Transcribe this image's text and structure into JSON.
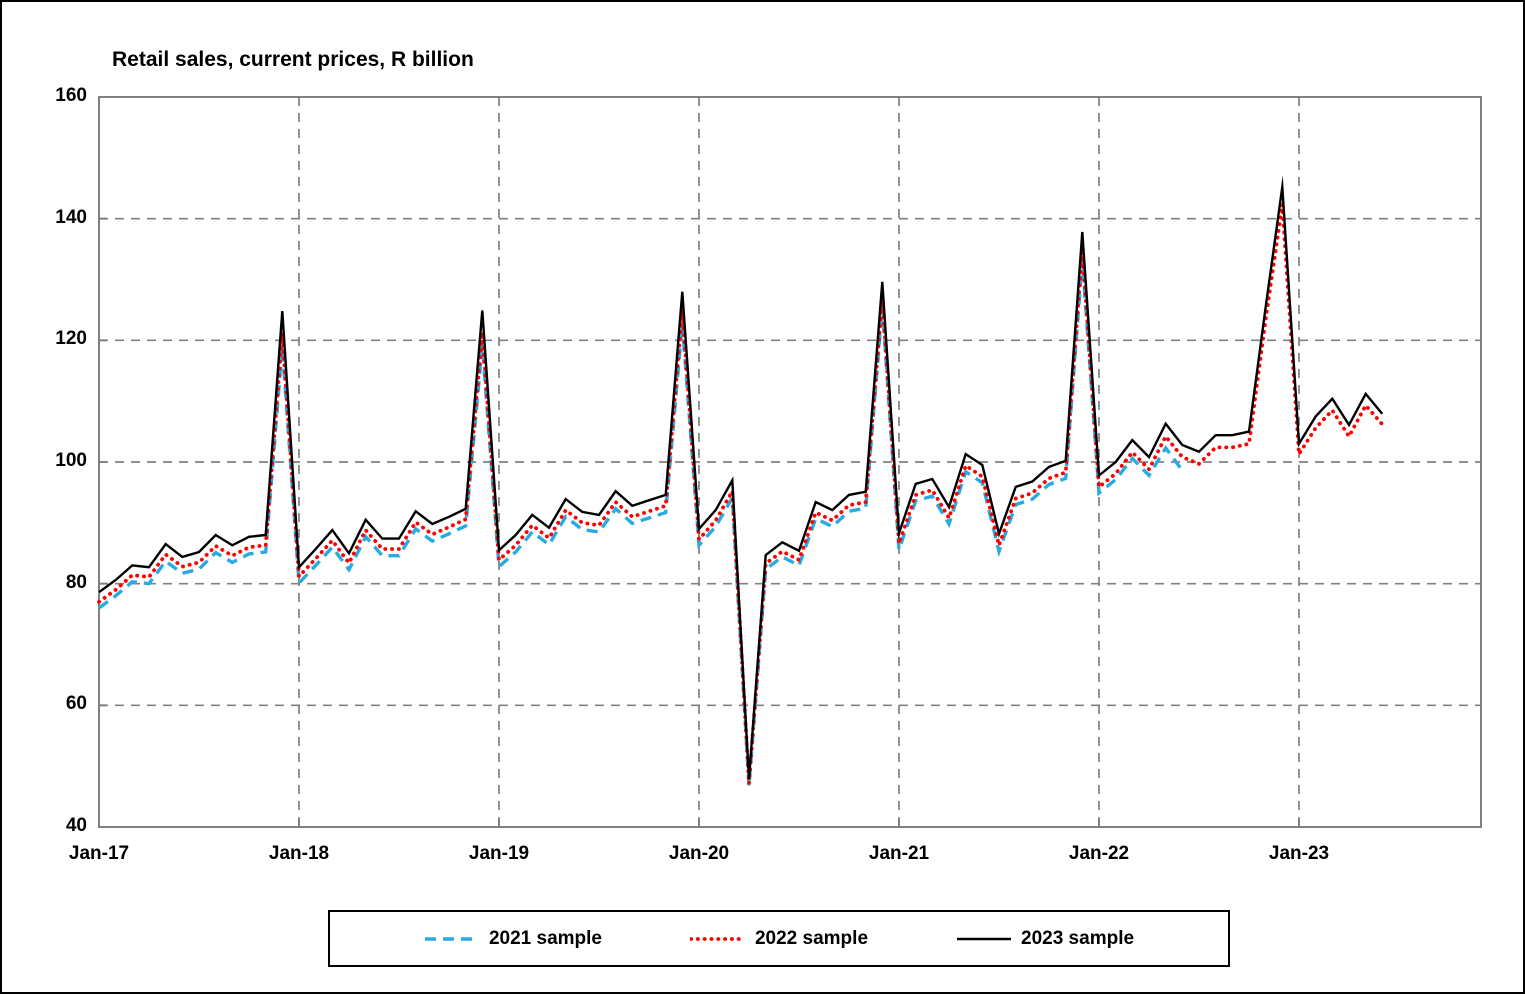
{
  "title": "Retail sales, current prices, R billion",
  "axes": {
    "y_tick_labels": [
      "40",
      "60",
      "80",
      "100",
      "120",
      "140",
      "160"
    ],
    "x_tick_labels": [
      "Jan-17",
      "Jan-18",
      "Jan-19",
      "Jan-20",
      "Jan-21",
      "Jan-22",
      "Jan-23"
    ]
  },
  "colors": {
    "series_2021": "#29ABE2",
    "series_2022": "#FF0000",
    "series_2023": "#000000",
    "gridline": "#808080",
    "frame": "#808080",
    "text": "#000000"
  },
  "legend": {
    "items": [
      {
        "label": "2021 sample",
        "style": "dashed",
        "color": "#29ABE2"
      },
      {
        "label": "2022 sample",
        "style": "dotted",
        "color": "#FF0000"
      },
      {
        "label": "2023 sample",
        "style": "solid",
        "color": "#000000"
      }
    ]
  },
  "chart_data": {
    "type": "line",
    "title": "Retail sales, current prices, R billion",
    "xlabel": "",
    "ylabel": "",
    "ylim": [
      40,
      160
    ],
    "y_ticks": [
      40,
      60,
      80,
      100,
      120,
      140,
      160
    ],
    "x_year_ticks": [
      "Jan-17",
      "Jan-18",
      "Jan-19",
      "Jan-20",
      "Jan-21",
      "Jan-22",
      "Jan-23"
    ],
    "grid": "dashed gray, horizontal at 20-unit steps and vertical at each January",
    "legend_position": "bottom",
    "months": [
      "Jan-17",
      "Feb-17",
      "Mar-17",
      "Apr-17",
      "May-17",
      "Jun-17",
      "Jul-17",
      "Aug-17",
      "Sep-17",
      "Oct-17",
      "Nov-17",
      "Dec-17",
      "Jan-18",
      "Feb-18",
      "Mar-18",
      "Apr-18",
      "May-18",
      "Jun-18",
      "Jul-18",
      "Aug-18",
      "Sep-18",
      "Oct-18",
      "Nov-18",
      "Dec-18",
      "Jan-19",
      "Feb-19",
      "Mar-19",
      "Apr-19",
      "May-19",
      "Jun-19",
      "Jul-19",
      "Aug-19",
      "Sep-19",
      "Oct-19",
      "Nov-19",
      "Dec-19",
      "Jan-20",
      "Feb-20",
      "Mar-20",
      "Apr-20",
      "May-20",
      "Jun-20",
      "Jul-20",
      "Aug-20",
      "Sep-20",
      "Oct-20",
      "Nov-20",
      "Dec-20",
      "Jan-21",
      "Feb-21",
      "Mar-21",
      "Apr-21",
      "May-21",
      "Jun-21",
      "Jul-21",
      "Aug-21",
      "Sep-21",
      "Oct-21",
      "Nov-21",
      "Dec-21",
      "Jan-22",
      "Feb-22",
      "Mar-22",
      "Apr-22",
      "May-22",
      "Jun-22",
      "Jul-22",
      "Aug-22",
      "Sep-22",
      "Oct-22",
      "Nov-22",
      "Dec-22",
      "Jan-23",
      "Feb-23",
      "Mar-23",
      "Apr-23",
      "May-23",
      "Jun-23"
    ],
    "series": [
      {
        "name": "2021 sample",
        "color": "#29ABE2",
        "style": "dashed",
        "values": [
          76.0,
          78.0,
          80.3,
          80.0,
          83.7,
          81.7,
          82.4,
          85.1,
          83.5,
          84.9,
          85.2,
          119.0,
          80.1,
          83.0,
          86.0,
          82.3,
          87.7,
          84.6,
          84.6,
          89.0,
          87.0,
          88.2,
          89.5,
          119.2,
          82.8,
          85.2,
          88.5,
          86.4,
          91.0,
          88.9,
          88.5,
          92.3,
          89.9,
          90.8,
          91.7,
          122.8,
          86.3,
          89.4,
          94.1,
          46.7,
          82.4,
          84.4,
          83.0,
          90.7,
          89.4,
          91.9,
          92.4,
          125.5,
          85.6,
          93.6,
          94.4,
          89.8,
          98.4,
          96.6,
          85.3,
          93.0,
          93.9,
          96.3,
          97.3,
          133.2,
          94.9,
          97.1,
          100.6,
          97.8,
          102.3,
          98.6
        ]
      },
      {
        "name": "2022 sample",
        "color": "#FF0000",
        "style": "dotted",
        "values": [
          77.0,
          79.0,
          81.4,
          81.1,
          84.8,
          82.8,
          83.5,
          86.2,
          84.6,
          86.0,
          86.3,
          121.2,
          81.2,
          84.1,
          87.1,
          83.4,
          88.8,
          85.7,
          85.7,
          90.1,
          88.1,
          89.3,
          90.6,
          121.3,
          83.9,
          86.3,
          89.6,
          87.5,
          92.1,
          90.0,
          89.6,
          93.4,
          91.0,
          91.9,
          92.8,
          125.0,
          87.3,
          90.4,
          95.2,
          47.1,
          83.3,
          85.3,
          83.9,
          91.7,
          90.4,
          92.9,
          93.4,
          127.0,
          86.6,
          94.6,
          95.4,
          90.8,
          99.4,
          97.6,
          86.3,
          94.0,
          94.9,
          97.3,
          98.3,
          135.0,
          95.9,
          98.1,
          101.6,
          98.8,
          104.2,
          100.8,
          99.7,
          102.4,
          102.4,
          103.0,
          123.5,
          142.3,
          101.3,
          105.6,
          108.5,
          104.2,
          109.3,
          106.2
        ]
      },
      {
        "name": "2023 sample",
        "color": "#000000",
        "style": "solid",
        "values": [
          78.6,
          80.6,
          83.0,
          82.7,
          86.5,
          84.4,
          85.2,
          88.0,
          86.3,
          87.7,
          88.0,
          124.8,
          82.7,
          85.7,
          88.8,
          85.0,
          90.5,
          87.4,
          87.4,
          91.9,
          89.8,
          91.0,
          92.3,
          124.9,
          85.5,
          88.0,
          91.3,
          89.2,
          93.9,
          91.8,
          91.3,
          95.2,
          92.8,
          93.7,
          94.6,
          128.0,
          89.0,
          92.1,
          97.0,
          47.9,
          84.7,
          86.8,
          85.4,
          93.4,
          92.1,
          94.6,
          95.1,
          129.6,
          88.3,
          96.4,
          97.2,
          92.6,
          101.3,
          99.5,
          88.2,
          95.9,
          96.8,
          99.2,
          100.2,
          137.8,
          97.8,
          100.0,
          103.6,
          100.8,
          106.3,
          102.8,
          101.7,
          104.4,
          104.4,
          105.0,
          125.5,
          145.2,
          103.0,
          107.5,
          110.4,
          106.1,
          111.2,
          107.9
        ]
      }
    ]
  }
}
